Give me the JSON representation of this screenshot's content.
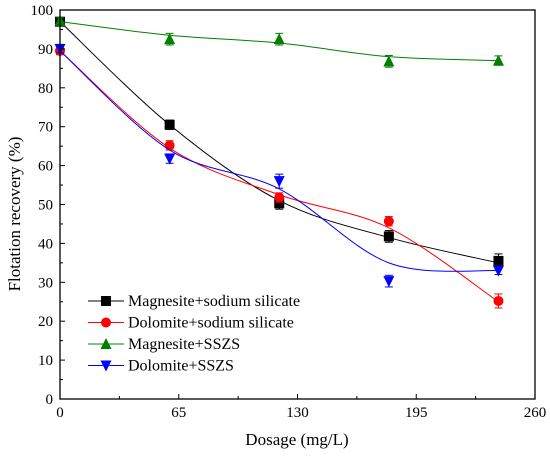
{
  "chart_data": {
    "type": "line",
    "xlabel": "Dosage (mg/L)",
    "ylabel": "Flotation recovery (%)",
    "xlim": [
      0,
      260
    ],
    "ylim": [
      0,
      100
    ],
    "xticks": [
      0,
      65,
      130,
      195,
      260
    ],
    "yticks": [
      0,
      10,
      20,
      30,
      40,
      50,
      60,
      70,
      80,
      90,
      100
    ],
    "grid": false,
    "legend_position": "bottom-left",
    "series": [
      {
        "name": "Magnesite+sodium silicate",
        "color": "#000000",
        "marker": "square",
        "x": [
          0,
          60,
          120,
          180,
          240
        ],
        "y": [
          97,
          70.5,
          50.3,
          41.8,
          35.5
        ],
        "err": [
          0.8,
          1.2,
          1.5,
          1.5,
          1.8
        ],
        "fit": [
          97,
          70.5,
          51,
          41.5,
          35
        ]
      },
      {
        "name": "Dolomite+sodium silicate",
        "color": "#ff0000",
        "marker": "circle",
        "x": [
          0,
          60,
          120,
          180,
          240
        ],
        "y": [
          89.5,
          65.2,
          51.8,
          45.7,
          25.2
        ],
        "err": [
          1.0,
          1.2,
          1.2,
          1.2,
          1.8
        ],
        "fit": [
          89.5,
          64.5,
          52.5,
          44,
          25
        ]
      },
      {
        "name": "Magnesite+SSZS",
        "color": "#008000",
        "marker": "triangle-up",
        "x": [
          0,
          60,
          120,
          180,
          240
        ],
        "y": [
          97.2,
          92.5,
          92.5,
          86.8,
          87
        ],
        "err": [
          0.8,
          1.5,
          1.5,
          1.5,
          1.2
        ],
        "fit": [
          97,
          93.5,
          91.5,
          88,
          87
        ]
      },
      {
        "name": "Dolomite+SSZS",
        "color": "#0000ff",
        "marker": "triangle-down",
        "x": [
          0,
          60,
          120,
          180,
          240
        ],
        "y": [
          90,
          61.8,
          56,
          30.3,
          33
        ],
        "err": [
          1.0,
          1.2,
          1.8,
          1.5,
          1.0
        ],
        "fit": [
          89.5,
          64,
          54,
          35,
          33
        ]
      }
    ]
  }
}
